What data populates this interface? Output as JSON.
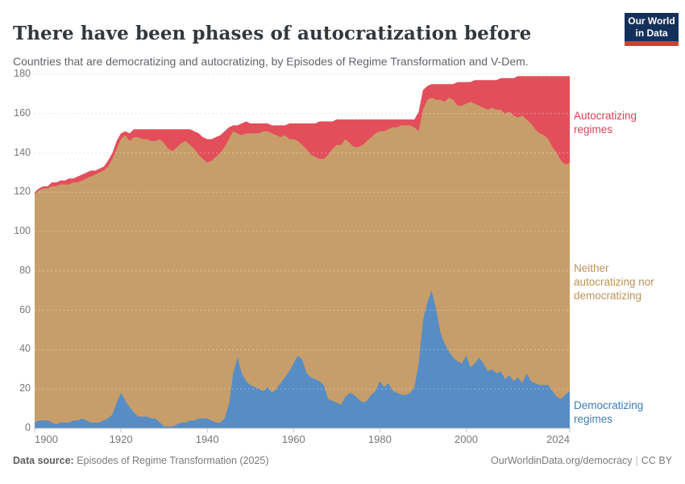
{
  "header": {
    "title": "There have been phases of autocratization before",
    "subtitle": "Countries that are democratizing and autocratizing, by Episodes of Regime Transformation and V-Dem.",
    "logo": {
      "line1": "Our World",
      "line2": "in Data"
    }
  },
  "footer": {
    "source_label": "Data source:",
    "source_value": "Episodes of Regime Transformation (2025)",
    "link": "OurWorldinData.org/democracy",
    "separator": "|",
    "license": "CC BY"
  },
  "colors": {
    "democratizing_fill": "#578dc4",
    "neither_fill": "#c79e6a",
    "autocratizing_fill": "#e34e5b",
    "democratizing_label": "#3d7cb8",
    "neither_label": "#bd9157",
    "autocratizing_label": "#dc3f55",
    "logo_background": "#14305a",
    "logo_bar": "#d93a35",
    "gridline": "#dcdcdc",
    "axis_line": "#c4c4c4",
    "tick_text": "#767676"
  },
  "chart_data": {
    "type": "area",
    "stacked": true,
    "title": "There have been phases of autocratization before",
    "subtitle": "Countries that are democratizing and autocratizing, by Episodes of Regime Transformation and V-Dem.",
    "xlabel": "",
    "ylabel": "",
    "x_start": 1900,
    "x_end": 2024,
    "x_ticks": [
      1900,
      1920,
      1940,
      1960,
      1980,
      2000,
      2024
    ],
    "y_ticks": [
      0,
      20,
      40,
      60,
      80,
      100,
      120,
      140,
      160,
      180
    ],
    "ylim": [
      0,
      180
    ],
    "grid": "horizontal-dashed",
    "legend_position": "right-annotations",
    "series": [
      {
        "name": "Democratizing regimes",
        "color": "#578dc4",
        "values": [
          3,
          4,
          4,
          4,
          3,
          2,
          3,
          3,
          3,
          4,
          4,
          5,
          4,
          3,
          3,
          3,
          4,
          5,
          7,
          13,
          18,
          14,
          11,
          8,
          6,
          6,
          6,
          5,
          5,
          3,
          1,
          1,
          1,
          2,
          3,
          3,
          4,
          4,
          5,
          5,
          5,
          4,
          3,
          3,
          5,
          12,
          28,
          36,
          28,
          24,
          22,
          21,
          20,
          19,
          21,
          18,
          20,
          23,
          26,
          29,
          33,
          37,
          35,
          28,
          26,
          25,
          24,
          22,
          15,
          14,
          13,
          12,
          16,
          18,
          17,
          15,
          13,
          14,
          17,
          19,
          24,
          21,
          23,
          19,
          18,
          17,
          17,
          18,
          21,
          33,
          55,
          64,
          70,
          61,
          49,
          43,
          39,
          36,
          34,
          33,
          37,
          31,
          33,
          36,
          33,
          29,
          30,
          28,
          29,
          25,
          27,
          24,
          26,
          23,
          28,
          24,
          23,
          22,
          22,
          22,
          19,
          16,
          15,
          17,
          19
        ]
      },
      {
        "name": "Neither autocratizing nor democratizing",
        "color": "#c79e6a",
        "values": [
          116,
          117,
          118,
          118,
          120,
          121,
          121,
          121,
          121,
          121,
          121,
          121,
          123,
          125,
          126,
          127,
          127,
          128,
          130,
          129,
          129,
          135,
          135,
          140,
          142,
          141,
          141,
          141,
          141,
          144,
          144,
          141,
          140,
          141,
          142,
          143,
          140,
          138,
          134,
          132,
          130,
          132,
          135,
          137,
          138,
          135,
          123,
          114,
          121,
          126,
          128,
          129,
          130,
          132,
          130,
          132,
          129,
          125,
          123,
          118,
          114,
          109,
          109,
          114,
          113,
          113,
          113,
          115,
          124,
          128,
          131,
          132,
          131,
          127,
          126,
          128,
          131,
          132,
          131,
          131,
          127,
          130,
          129,
          134,
          135,
          137,
          137,
          136,
          132,
          118,
          107,
          103,
          98,
          106,
          118,
          123,
          129,
          131,
          130,
          131,
          128,
          135,
          132,
          128,
          130,
          133,
          133,
          134,
          133,
          135,
          134,
          135,
          132,
          136,
          129,
          131,
          129,
          128,
          127,
          125,
          124,
          124,
          121,
          117,
          116
        ]
      },
      {
        "name": "Autocratizing regimes",
        "color": "#e34e5b",
        "values": [
          1,
          1,
          1,
          1,
          2,
          2,
          2,
          2,
          3,
          2,
          3,
          3,
          3,
          3,
          2,
          2,
          2,
          3,
          3,
          4,
          3,
          2,
          4,
          4,
          4,
          5,
          5,
          6,
          6,
          5,
          7,
          10,
          11,
          9,
          7,
          6,
          8,
          9,
          11,
          11,
          12,
          11,
          10,
          9,
          8,
          6,
          3,
          4,
          6,
          6,
          5,
          5,
          5,
          4,
          4,
          4,
          5,
          6,
          5,
          8,
          8,
          9,
          11,
          13,
          16,
          17,
          19,
          19,
          17,
          14,
          13,
          13,
          10,
          12,
          14,
          14,
          13,
          11,
          9,
          7,
          6,
          6,
          5,
          4,
          4,
          3,
          3,
          3,
          4,
          10,
          10,
          7,
          7,
          8,
          8,
          9,
          7,
          8,
          12,
          12,
          11,
          10,
          12,
          13,
          14,
          15,
          14,
          15,
          16,
          18,
          17,
          19,
          21,
          20,
          22,
          24,
          27,
          29,
          30,
          32,
          36,
          39,
          43,
          45,
          44
        ]
      }
    ]
  }
}
